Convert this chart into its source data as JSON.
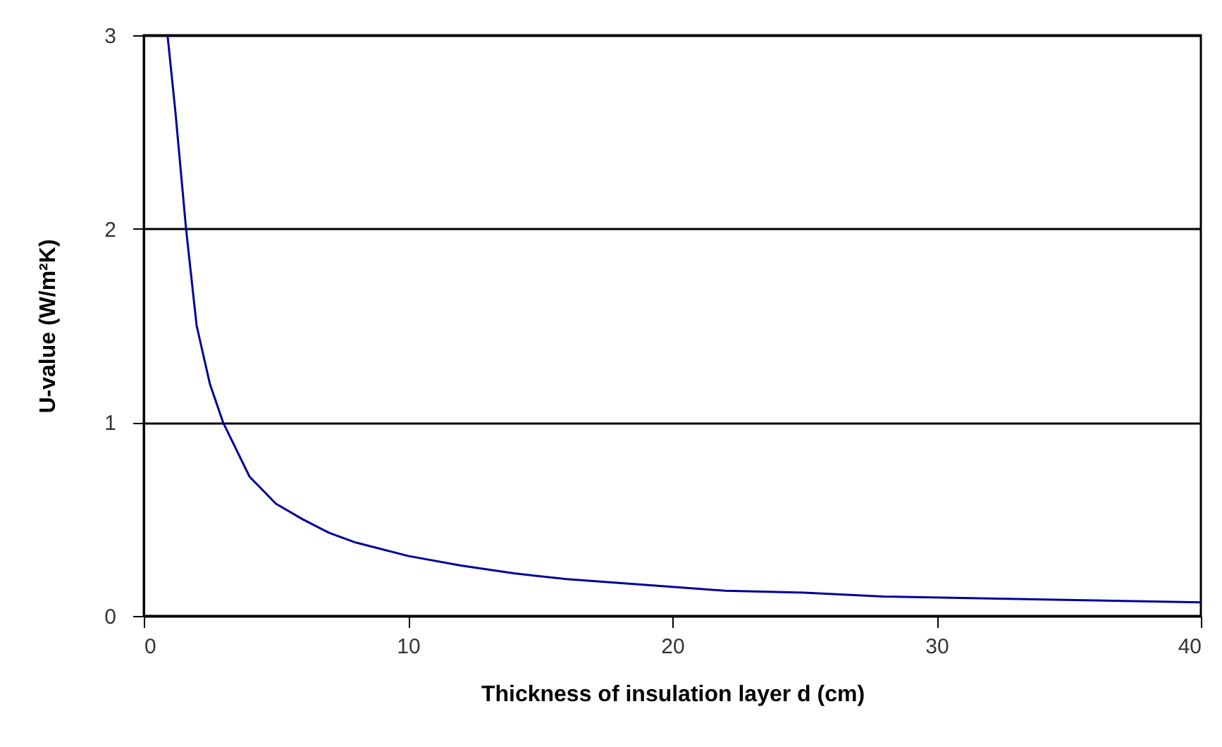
{
  "chart_data": {
    "type": "line",
    "xlabel": "Thickness of insulation layer d (cm)",
    "ylabel": "U-value (W/m²K)",
    "x": [
      0.9,
      1.2,
      1.6,
      2,
      2.5,
      3,
      4,
      5,
      6,
      7,
      8,
      10,
      12,
      14,
      16,
      18,
      20,
      22,
      25,
      28,
      32,
      36,
      40
    ],
    "series": [
      {
        "color": "#000099",
        "values": [
          3.0,
          2.6,
          2.0,
          1.5,
          1.2,
          1.0,
          0.72,
          0.58,
          0.5,
          0.43,
          0.38,
          0.31,
          0.26,
          0.22,
          0.19,
          0.17,
          0.15,
          0.13,
          0.12,
          0.1,
          0.09,
          0.08,
          0.07
        ]
      }
    ],
    "xlim": [
      0,
      40
    ],
    "xticks": [
      0,
      10,
      20,
      30,
      40
    ],
    "ylim": [
      0,
      3
    ],
    "yticks": [
      0,
      1,
      2,
      3
    ],
    "grid": "y",
    "marker": "none",
    "line_style": "solid"
  }
}
